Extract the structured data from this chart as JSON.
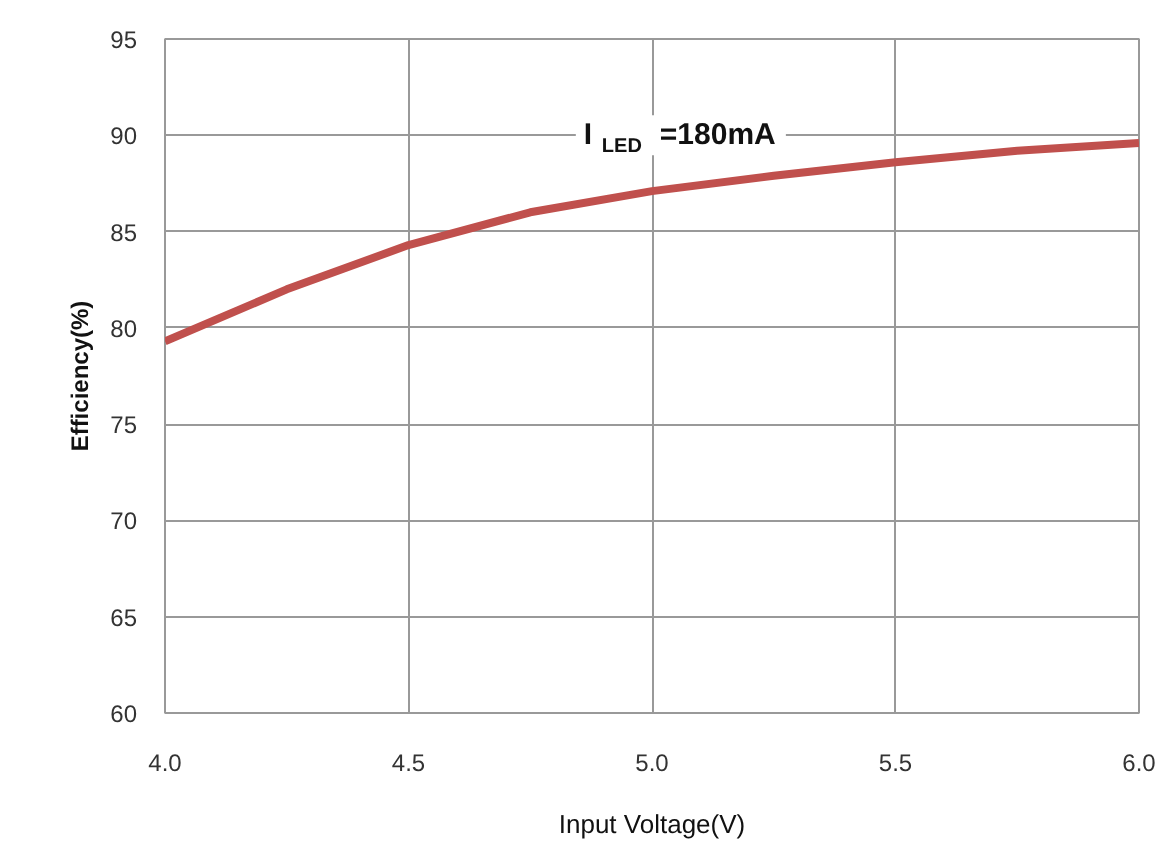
{
  "chart_data": {
    "type": "line",
    "xlabel": "Input Voltage(V)",
    "ylabel": "Efficiency(%)",
    "annotations": [
      "I$_{LED}$=180mA"
    ],
    "x": [
      4.0,
      4.25,
      4.5,
      4.75,
      5.0,
      5.25,
      5.5,
      5.75,
      6.0
    ],
    "series": [
      {
        "color": "#c0504d",
        "values": [
          79.3,
          82.0,
          84.3,
          86.0,
          87.1,
          87.9,
          88.6,
          89.2,
          89.6
        ]
      }
    ],
    "xlim": [
      4.0,
      6.0
    ],
    "xticks": [
      {
        "value": 4.0,
        "label": "4.0"
      },
      {
        "value": 4.5,
        "label": "4.5"
      },
      {
        "value": 5.0,
        "label": "5.0"
      },
      {
        "value": 5.5,
        "label": "5.5"
      },
      {
        "value": 6.0,
        "label": "6.0"
      }
    ],
    "ylim": [
      60,
      95
    ],
    "yticks": [
      60,
      65,
      70,
      75,
      80,
      85,
      90,
      95
    ],
    "grid": true,
    "marker": "none",
    "line_style": "solid"
  }
}
